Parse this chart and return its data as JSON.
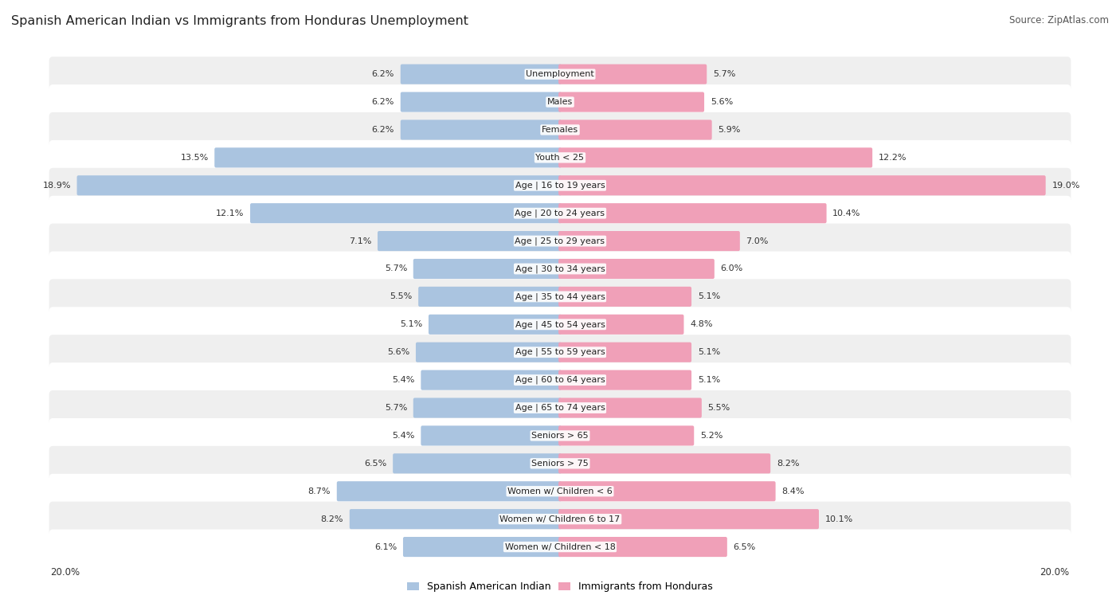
{
  "title": "Spanish American Indian vs Immigrants from Honduras Unemployment",
  "source": "Source: ZipAtlas.com",
  "categories": [
    "Unemployment",
    "Males",
    "Females",
    "Youth < 25",
    "Age | 16 to 19 years",
    "Age | 20 to 24 years",
    "Age | 25 to 29 years",
    "Age | 30 to 34 years",
    "Age | 35 to 44 years",
    "Age | 45 to 54 years",
    "Age | 55 to 59 years",
    "Age | 60 to 64 years",
    "Age | 65 to 74 years",
    "Seniors > 65",
    "Seniors > 75",
    "Women w/ Children < 6",
    "Women w/ Children 6 to 17",
    "Women w/ Children < 18"
  ],
  "left_values": [
    6.2,
    6.2,
    6.2,
    13.5,
    18.9,
    12.1,
    7.1,
    5.7,
    5.5,
    5.1,
    5.6,
    5.4,
    5.7,
    5.4,
    6.5,
    8.7,
    8.2,
    6.1
  ],
  "right_values": [
    5.7,
    5.6,
    5.9,
    12.2,
    19.0,
    10.4,
    7.0,
    6.0,
    5.1,
    4.8,
    5.1,
    5.1,
    5.5,
    5.2,
    8.2,
    8.4,
    10.1,
    6.5
  ],
  "left_color": "#aac4e0",
  "right_color": "#f0a0b8",
  "left_label": "Spanish American Indian",
  "right_label": "Immigrants from Honduras",
  "axis_max": 20.0,
  "background_color": "#ffffff",
  "row_bg_even": "#efefef",
  "row_bg_odd": "#ffffff",
  "title_fontsize": 11.5,
  "source_fontsize": 8.5,
  "bar_label_fontsize": 8,
  "category_fontsize": 8
}
